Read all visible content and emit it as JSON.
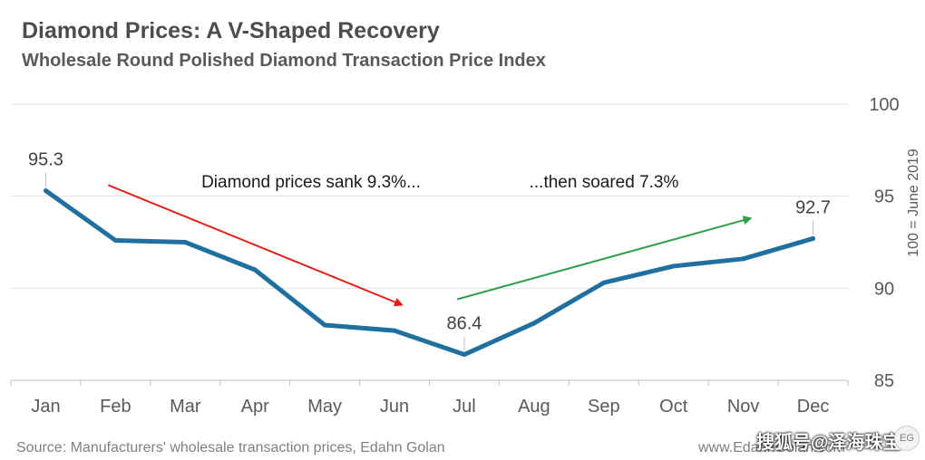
{
  "chart_data": {
    "type": "line",
    "title": "Diamond Prices: A V-Shaped Recovery",
    "subtitle": "Wholesale Round Polished Diamond Transaction Price Index",
    "categories": [
      "Jan",
      "Feb",
      "Mar",
      "Apr",
      "May",
      "Jun",
      "Jul",
      "Aug",
      "Sep",
      "Oct",
      "Nov",
      "Dec"
    ],
    "series": [
      {
        "name": "Price Index",
        "color": "#1f6f9f",
        "values": [
          95.3,
          92.6,
          92.5,
          91.0,
          88.0,
          87.7,
          86.4,
          88.1,
          90.3,
          91.2,
          91.6,
          92.7
        ]
      }
    ],
    "ylabel": "100 = June 2019",
    "ylim": [
      85,
      100
    ],
    "yticks": [
      85,
      90,
      95,
      100
    ],
    "y_axis_side": "right",
    "grid": true,
    "point_labels": [
      {
        "index": 0,
        "text": "95.3"
      },
      {
        "index": 6,
        "text": "86.4"
      },
      {
        "index": 11,
        "text": "92.7"
      }
    ],
    "annotations": [
      {
        "text": "Diamond prices sank 9.3%...",
        "color": "#e0201b",
        "arrow_from": [
          "Feb",
          95.6
        ],
        "arrow_to": [
          "Jun",
          89.1
        ]
      },
      {
        "text": "...then soared 7.3%",
        "color": "#2ea04a",
        "arrow_from": [
          "Jul",
          89.4
        ],
        "arrow_to": [
          "Nov",
          93.8
        ]
      }
    ]
  },
  "footer": {
    "source": "Source: Manufacturers' wholesale transaction prices, Edahn Golan",
    "website": "www.EdahnGolan.com",
    "watermark": "搜狐号@泽海珠宝",
    "badge": "EG"
  }
}
